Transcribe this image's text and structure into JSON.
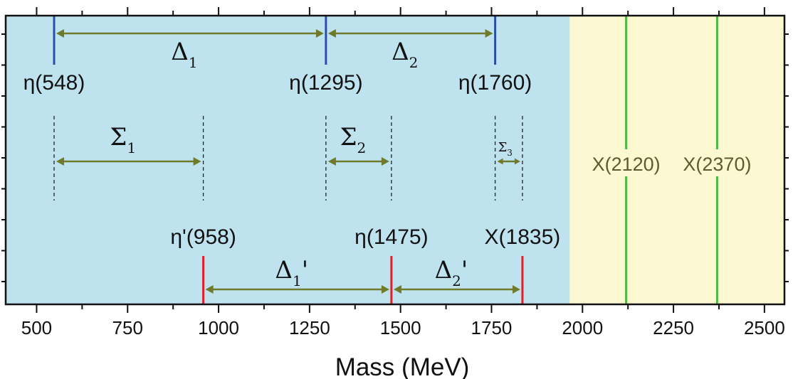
{
  "chart_data": {
    "type": "diagram",
    "xlabel": "Mass (MeV)",
    "xlim": [
      415,
      2555
    ],
    "x_ticks": [
      500,
      750,
      1000,
      1250,
      1500,
      1750,
      2000,
      2250,
      2500
    ],
    "x_tick_labels": [
      "500",
      "750",
      "1000",
      "1250",
      "1500",
      "1750",
      "2000",
      "2250",
      "2500"
    ],
    "regions": [
      {
        "from": 415,
        "to": 1965,
        "color": "#bee3ef"
      },
      {
        "from": 1965,
        "to": 2555,
        "color": "#fbf8d2"
      }
    ],
    "states": [
      {
        "name": "η(548)",
        "mass": 548,
        "color": "#2b4fa8",
        "row": "top"
      },
      {
        "name": "η(1295)",
        "mass": 1295,
        "color": "#2b4fa8",
        "row": "top"
      },
      {
        "name": "η(1760)",
        "mass": 1760,
        "color": "#2b4fa8",
        "row": "top"
      },
      {
        "name": "η'(958)",
        "mass": 958,
        "color": "#e0202a",
        "row": "bottom"
      },
      {
        "name": "η(1475)",
        "mass": 1475,
        "color": "#e0202a",
        "row": "bottom"
      },
      {
        "name": "X(1835)",
        "mass": 1835,
        "color": "#e0202a",
        "row": "bottom"
      },
      {
        "name": "X(2120)",
        "mass": 2120,
        "color": "#4db848",
        "row": "full"
      },
      {
        "name": "X(2370)",
        "mass": 2370,
        "color": "#4db848",
        "row": "full"
      }
    ],
    "intervals": [
      {
        "label": "Δ",
        "sub": "1",
        "prime": "",
        "from": 548,
        "to": 1295,
        "row": "top"
      },
      {
        "label": "Δ",
        "sub": "2",
        "prime": "",
        "from": 1295,
        "to": 1760,
        "row": "top"
      },
      {
        "label": "Σ",
        "sub": "1",
        "prime": "",
        "from": 548,
        "to": 958,
        "row": "middle"
      },
      {
        "label": "Σ",
        "sub": "2",
        "prime": "",
        "from": 1295,
        "to": 1475,
        "row": "middle"
      },
      {
        "label": "Σ",
        "sub": "3",
        "prime": "",
        "from": 1760,
        "to": 1835,
        "row": "middle"
      },
      {
        "label": "Δ",
        "sub": "1",
        "prime": "'",
        "from": 958,
        "to": 1475,
        "row": "bottom"
      },
      {
        "label": "Δ",
        "sub": "2",
        "prime": "'",
        "from": 1475,
        "to": 1835,
        "row": "bottom"
      }
    ],
    "arrow_color": "#6f7a2a",
    "x_state_label_color": "#5f5a2e"
  }
}
